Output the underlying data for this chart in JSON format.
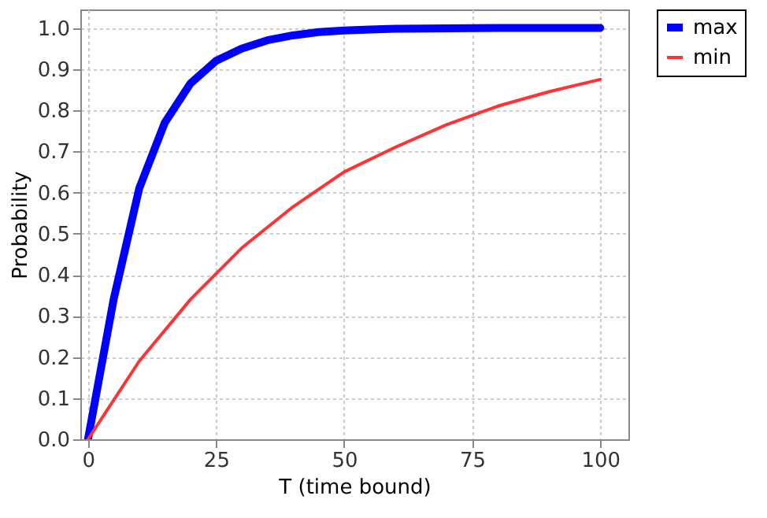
{
  "chart_data": {
    "type": "line",
    "xlabel": "T (time bound)",
    "ylabel": "Probability",
    "xlim": [
      -1.5,
      105.5
    ],
    "xticks": [
      0,
      25,
      50,
      75,
      100
    ],
    "ylim": [
      0,
      1.045
    ],
    "yticks": [
      {
        "value": 0,
        "label": "0.0"
      },
      0.1,
      0.2,
      0.3,
      0.4,
      0.5,
      0.6,
      0.7,
      0.8,
      0.9,
      {
        "value": 1,
        "label": "1.0"
      }
    ],
    "grid": true,
    "legend": "right",
    "marker": "none",
    "line_style": "solid",
    "series": [
      {
        "name": "max",
        "color": "#0000ff",
        "x": [
          0,
          5,
          10,
          15,
          20,
          25,
          30,
          35,
          40,
          45,
          50,
          55,
          60,
          70,
          80,
          90,
          100
        ],
        "values": [
          0.0,
          0.34,
          0.61,
          0.77,
          0.865,
          0.92,
          0.95,
          0.97,
          0.982,
          0.99,
          0.994,
          0.996,
          0.998,
          0.999,
          1.0,
          1.0,
          1.0
        ]
      },
      {
        "name": "min",
        "color": "#ff3333",
        "x": [
          0,
          10,
          20,
          30,
          40,
          50,
          60,
          70,
          80,
          90,
          100
        ],
        "values": [
          0.0,
          0.19,
          0.34,
          0.465,
          0.565,
          0.65,
          0.71,
          0.765,
          0.81,
          0.845,
          0.875
        ]
      }
    ]
  }
}
